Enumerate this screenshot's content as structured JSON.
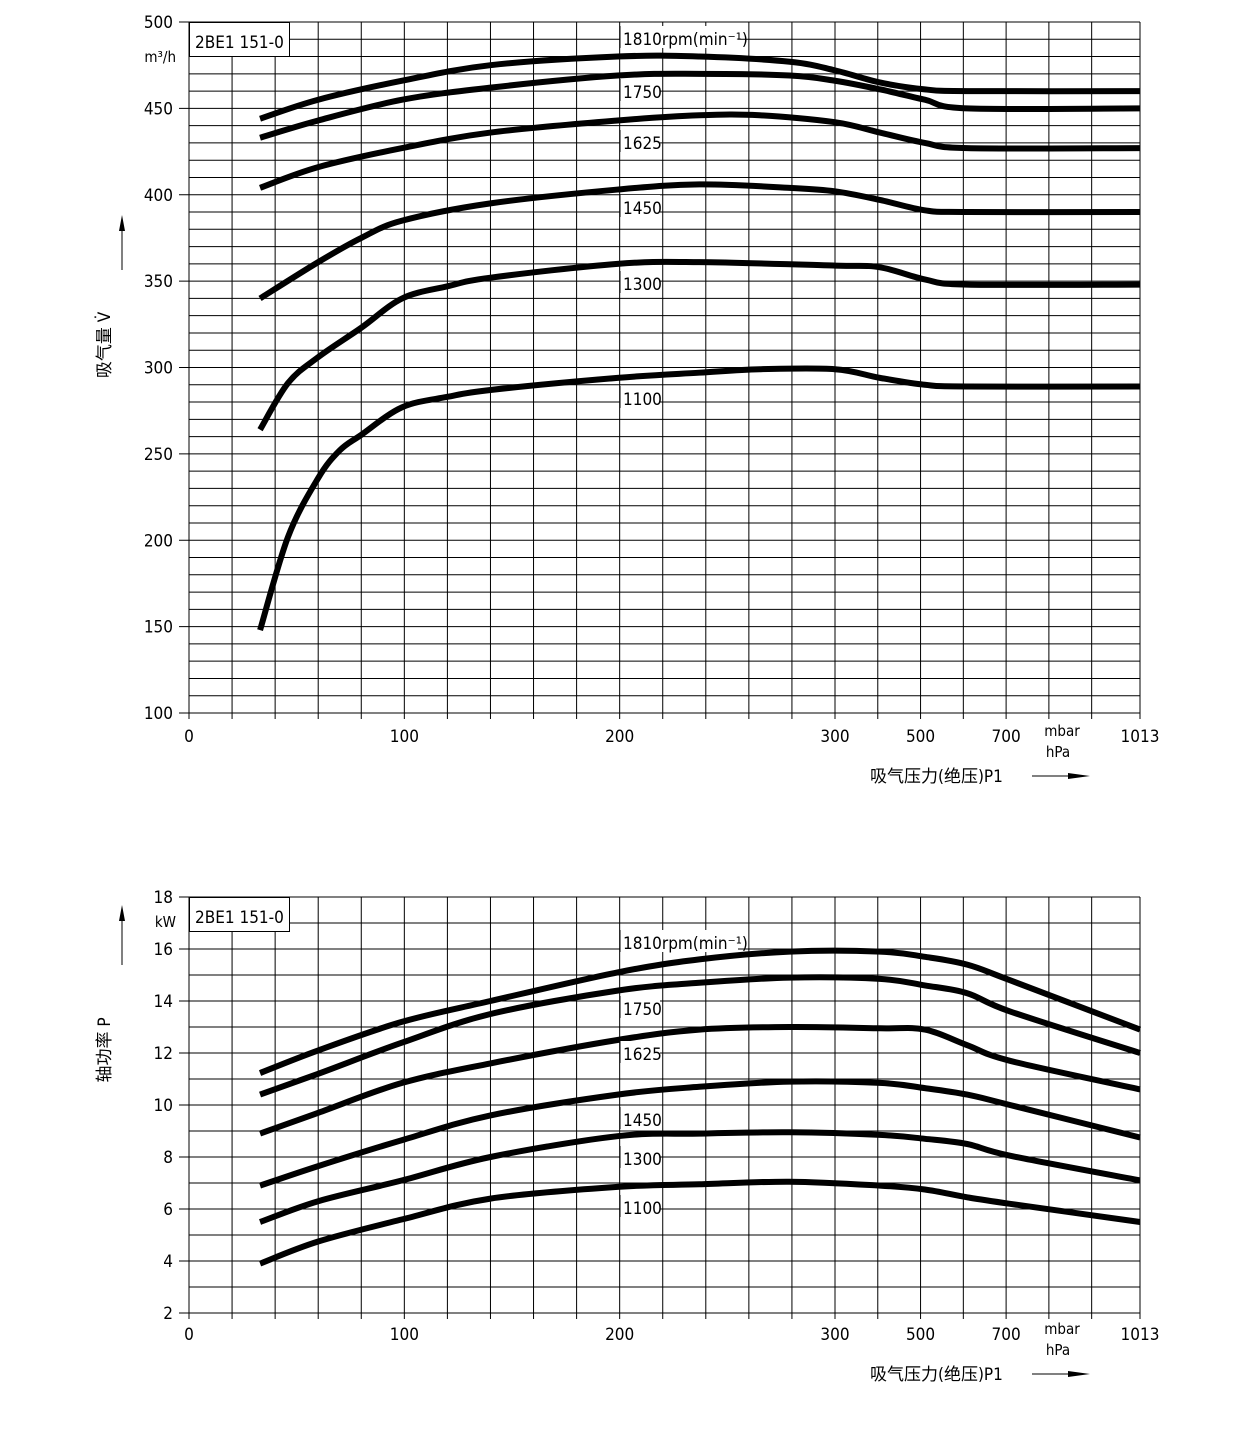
{
  "chart_data": [
    {
      "type": "line",
      "model": "2BE1 151-0",
      "ylabel": "吸气量 V̇",
      "yunit": "m³/h",
      "xlabel": "吸气压力(绝压)P1",
      "xunit_1": "mbar",
      "xunit_2": "hPa",
      "ylim": [
        100,
        500
      ],
      "yticks": [
        100,
        150,
        200,
        250,
        300,
        350,
        400,
        450,
        500
      ],
      "ygrid_step": 10,
      "xticks": [
        0,
        100,
        200,
        300,
        500,
        700,
        1013
      ],
      "xtick_labels": [
        "0",
        "100",
        "200",
        "300",
        "500",
        "700",
        "1013"
      ],
      "xgrid": [
        0,
        20,
        40,
        60,
        80,
        100,
        120,
        140,
        160,
        180,
        200,
        220,
        240,
        260,
        280,
        300,
        400,
        500,
        600,
        700,
        800,
        900,
        1013
      ],
      "grid": true,
      "series": [
        {
          "name": "1810rpm(min⁻¹)",
          "x": [
            33,
            60,
            99,
            140,
            199,
            237,
            279,
            300,
            405,
            510,
            609,
            1013
          ],
          "y": [
            444,
            455,
            466,
            475,
            480,
            480,
            477,
            472,
            465,
            461,
            460,
            460
          ]
        },
        {
          "name": "1750",
          "x": [
            33,
            60,
            99,
            140,
            199,
            237,
            279,
            300,
            405,
            510,
            609,
            1013
          ],
          "y": [
            433,
            443,
            455,
            462,
            469,
            470,
            469,
            466,
            461,
            455,
            450,
            450
          ]
        },
        {
          "name": "1625",
          "x": [
            33,
            60,
            99,
            140,
            199,
            237,
            265,
            300,
            405,
            510,
            609,
            1013
          ],
          "y": [
            404,
            416,
            427,
            436,
            443,
            446,
            446,
            442,
            436,
            430,
            427,
            427
          ]
        },
        {
          "name": "1450",
          "x": [
            33,
            60,
            80,
            99,
            140,
            199,
            237,
            279,
            300,
            405,
            510,
            609,
            1013
          ],
          "y": [
            340,
            361,
            375,
            385,
            395,
            403,
            406,
            404,
            402,
            397,
            391,
            390,
            390
          ]
        },
        {
          "name": "1300",
          "x": [
            33,
            46,
            60,
            80,
            99,
            120,
            140,
            199,
            237,
            300,
            405,
            510,
            609,
            1013
          ],
          "y": [
            264,
            291,
            306,
            323,
            340,
            347,
            352,
            360,
            361,
            359,
            358,
            351,
            348,
            348
          ]
        },
        {
          "name": "1100",
          "x": [
            33,
            46,
            60,
            70,
            80,
            99,
            120,
            140,
            199,
            237,
            265,
            300,
            405,
            510,
            609,
            1013
          ],
          "y": [
            148,
            202,
            236,
            252,
            261,
            277,
            283,
            287,
            294,
            297,
            299,
            299,
            294,
            290,
            289,
            289
          ]
        }
      ]
    },
    {
      "type": "line",
      "model": "2BE1 151-0",
      "ylabel": "轴功率 P",
      "yunit": "kW",
      "xlabel": "吸气压力(绝压)P1",
      "xunit_1": "mbar",
      "xunit_2": "hPa",
      "ylim": [
        2,
        18
      ],
      "yticks": [
        2,
        4,
        6,
        8,
        10,
        12,
        14,
        16,
        18
      ],
      "ygrid_step": 1,
      "xticks": [
        0,
        100,
        200,
        300,
        500,
        700,
        1013
      ],
      "xtick_labels": [
        "0",
        "100",
        "200",
        "300",
        "500",
        "700",
        "1013"
      ],
      "xgrid": [
        0,
        20,
        40,
        60,
        80,
        100,
        120,
        140,
        160,
        180,
        200,
        220,
        240,
        260,
        280,
        300,
        400,
        500,
        600,
        700,
        800,
        900,
        1013
      ],
      "grid": true,
      "series": [
        {
          "name": "1810rpm(min⁻¹)",
          "x": [
            33,
            60,
            99,
            140,
            199,
            237,
            279,
            405,
            510,
            609,
            709,
            1013
          ],
          "y": [
            11.23,
            12.1,
            13.2,
            14.0,
            15.1,
            15.6,
            15.9,
            15.9,
            15.7,
            15.4,
            14.8,
            12.9
          ]
        },
        {
          "name": "1750",
          "x": [
            33,
            60,
            99,
            140,
            199,
            237,
            279,
            405,
            510,
            609,
            709,
            1013
          ],
          "y": [
            10.4,
            11.2,
            12.4,
            13.5,
            14.4,
            14.7,
            14.9,
            14.85,
            14.6,
            14.3,
            13.6,
            12.0
          ]
        },
        {
          "name": "1625",
          "x": [
            33,
            60,
            99,
            140,
            199,
            237,
            279,
            405,
            510,
            609,
            709,
            1013
          ],
          "y": [
            8.9,
            9.7,
            10.85,
            11.6,
            12.5,
            12.9,
            13.0,
            12.95,
            12.9,
            12.3,
            11.7,
            10.6
          ]
        },
        {
          "name": "1450",
          "x": [
            33,
            60,
            99,
            140,
            199,
            237,
            279,
            405,
            510,
            609,
            709,
            1013
          ],
          "y": [
            6.9,
            7.65,
            8.65,
            9.6,
            10.4,
            10.7,
            10.9,
            10.85,
            10.65,
            10.4,
            10.0,
            8.75
          ]
        },
        {
          "name": "1300",
          "x": [
            33,
            60,
            99,
            140,
            199,
            237,
            279,
            405,
            510,
            609,
            709,
            1013
          ],
          "y": [
            5.5,
            6.3,
            7.1,
            8.0,
            8.8,
            8.9,
            8.95,
            8.85,
            8.7,
            8.5,
            8.05,
            7.1
          ]
        },
        {
          "name": "1100",
          "x": [
            33,
            60,
            99,
            140,
            199,
            237,
            279,
            405,
            510,
            609,
            709,
            1013
          ],
          "y": [
            3.9,
            4.75,
            5.6,
            6.4,
            6.85,
            6.95,
            7.05,
            6.9,
            6.75,
            6.45,
            6.2,
            5.5
          ]
        }
      ]
    }
  ]
}
